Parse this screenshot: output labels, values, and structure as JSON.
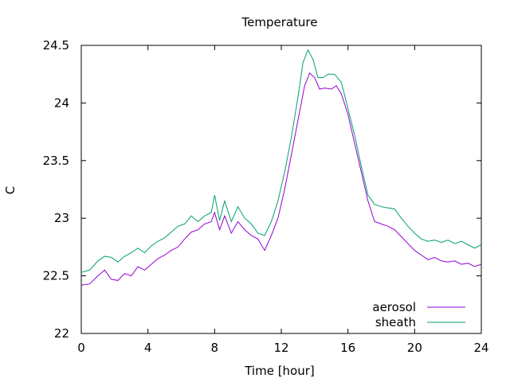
{
  "chart_data": {
    "type": "line",
    "title": "Temperature",
    "xlabel": "Time [hour]",
    "ylabel": "C",
    "xlim": [
      0,
      24
    ],
    "ylim": [
      22,
      24.5
    ],
    "xticks": [
      0,
      4,
      8,
      12,
      16,
      20,
      24
    ],
    "xtick_labels": [
      "0",
      "4",
      "8",
      "12",
      "16",
      "20",
      "24"
    ],
    "yticks": [
      22,
      22.5,
      23,
      23.5,
      24,
      24.5
    ],
    "ytick_labels": [
      "22",
      "22.5",
      "23",
      "23.5",
      "24",
      "24.5"
    ],
    "grid": false,
    "legend_position": "bottom-right",
    "series": [
      {
        "name": "aerosol",
        "color": "#9400d3",
        "points": [
          [
            0,
            22.42
          ],
          [
            0.5,
            22.43
          ],
          [
            1,
            22.5
          ],
          [
            1.4,
            22.55
          ],
          [
            1.8,
            22.47
          ],
          [
            2.2,
            22.46
          ],
          [
            2.6,
            22.52
          ],
          [
            3,
            22.5
          ],
          [
            3.4,
            22.58
          ],
          [
            3.8,
            22.55
          ],
          [
            4.2,
            22.6
          ],
          [
            4.6,
            22.65
          ],
          [
            5,
            22.68
          ],
          [
            5.4,
            22.72
          ],
          [
            5.8,
            22.75
          ],
          [
            6.2,
            22.82
          ],
          [
            6.6,
            22.88
          ],
          [
            7,
            22.9
          ],
          [
            7.4,
            22.95
          ],
          [
            7.8,
            22.97
          ],
          [
            8,
            23.05
          ],
          [
            8.3,
            22.9
          ],
          [
            8.6,
            23.02
          ],
          [
            9,
            22.87
          ],
          [
            9.4,
            22.97
          ],
          [
            9.8,
            22.9
          ],
          [
            10.2,
            22.85
          ],
          [
            10.6,
            22.82
          ],
          [
            11,
            22.72
          ],
          [
            11.4,
            22.85
          ],
          [
            11.8,
            23.0
          ],
          [
            12.2,
            23.25
          ],
          [
            12.6,
            23.55
          ],
          [
            13,
            23.85
          ],
          [
            13.4,
            24.15
          ],
          [
            13.7,
            24.26
          ],
          [
            14,
            24.22
          ],
          [
            14.3,
            24.12
          ],
          [
            14.6,
            24.13
          ],
          [
            15,
            24.12
          ],
          [
            15.3,
            24.15
          ],
          [
            15.6,
            24.08
          ],
          [
            16,
            23.9
          ],
          [
            16.4,
            23.65
          ],
          [
            16.8,
            23.4
          ],
          [
            17.2,
            23.15
          ],
          [
            17.6,
            22.97
          ],
          [
            18,
            22.95
          ],
          [
            18.4,
            22.93
          ],
          [
            18.8,
            22.9
          ],
          [
            19.2,
            22.84
          ],
          [
            19.6,
            22.78
          ],
          [
            20,
            22.72
          ],
          [
            20.4,
            22.68
          ],
          [
            20.8,
            22.64
          ],
          [
            21.2,
            22.66
          ],
          [
            21.6,
            22.63
          ],
          [
            22,
            22.62
          ],
          [
            22.4,
            22.63
          ],
          [
            22.8,
            22.6
          ],
          [
            23.2,
            22.61
          ],
          [
            23.6,
            22.58
          ],
          [
            24,
            22.6
          ]
        ]
      },
      {
        "name": "sheath",
        "color": "#009e73",
        "points": [
          [
            0,
            22.53
          ],
          [
            0.5,
            22.55
          ],
          [
            1,
            22.63
          ],
          [
            1.4,
            22.67
          ],
          [
            1.8,
            22.66
          ],
          [
            2.2,
            22.62
          ],
          [
            2.6,
            22.67
          ],
          [
            3,
            22.7
          ],
          [
            3.4,
            22.74
          ],
          [
            3.8,
            22.7
          ],
          [
            4.2,
            22.76
          ],
          [
            4.6,
            22.8
          ],
          [
            5,
            22.83
          ],
          [
            5.4,
            22.88
          ],
          [
            5.8,
            22.93
          ],
          [
            6.2,
            22.95
          ],
          [
            6.6,
            23.02
          ],
          [
            7,
            22.97
          ],
          [
            7.4,
            23.02
          ],
          [
            7.8,
            23.05
          ],
          [
            8,
            23.2
          ],
          [
            8.3,
            22.98
          ],
          [
            8.6,
            23.15
          ],
          [
            9,
            22.97
          ],
          [
            9.4,
            23.1
          ],
          [
            9.8,
            23.0
          ],
          [
            10.2,
            22.95
          ],
          [
            10.6,
            22.87
          ],
          [
            11,
            22.85
          ],
          [
            11.4,
            22.97
          ],
          [
            11.8,
            23.15
          ],
          [
            12.2,
            23.4
          ],
          [
            12.6,
            23.7
          ],
          [
            13,
            24.05
          ],
          [
            13.3,
            24.35
          ],
          [
            13.6,
            24.46
          ],
          [
            13.9,
            24.38
          ],
          [
            14.2,
            24.22
          ],
          [
            14.5,
            24.22
          ],
          [
            14.8,
            24.25
          ],
          [
            15.2,
            24.25
          ],
          [
            15.6,
            24.18
          ],
          [
            16,
            23.95
          ],
          [
            16.4,
            23.72
          ],
          [
            16.8,
            23.45
          ],
          [
            17.2,
            23.2
          ],
          [
            17.6,
            23.12
          ],
          [
            18,
            23.1
          ],
          [
            18.4,
            23.09
          ],
          [
            18.8,
            23.08
          ],
          [
            19.2,
            23.0
          ],
          [
            19.6,
            22.93
          ],
          [
            20,
            22.87
          ],
          [
            20.4,
            22.82
          ],
          [
            20.8,
            22.8
          ],
          [
            21.2,
            22.81
          ],
          [
            21.6,
            22.79
          ],
          [
            22,
            22.81
          ],
          [
            22.4,
            22.78
          ],
          [
            22.8,
            22.8
          ],
          [
            23.2,
            22.77
          ],
          [
            23.6,
            22.74
          ],
          [
            24,
            22.77
          ]
        ]
      }
    ]
  }
}
